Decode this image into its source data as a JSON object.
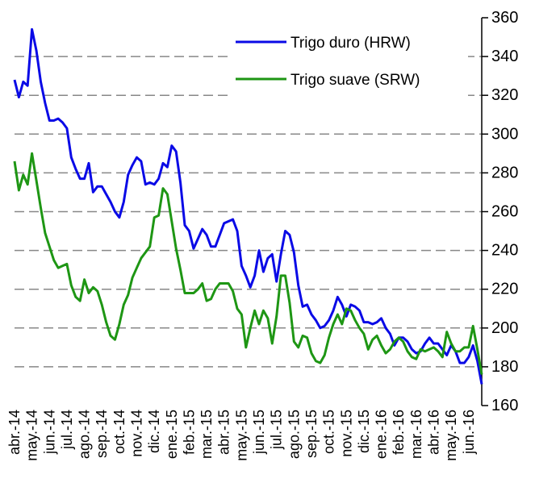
{
  "chart_data": {
    "type": "line",
    "categories": [
      "abr.-14",
      null,
      null,
      null,
      "may.-14",
      null,
      null,
      null,
      "jun.-14",
      null,
      null,
      null,
      "jul.-14",
      null,
      null,
      null,
      "ago.-14",
      null,
      null,
      null,
      "sep.-14",
      null,
      null,
      null,
      "oct.-14",
      null,
      null,
      null,
      "nov.-14",
      null,
      null,
      null,
      "dic.-14",
      null,
      null,
      null,
      "ene.-15",
      null,
      null,
      null,
      "feb.-15",
      null,
      null,
      null,
      "mar.-15",
      null,
      null,
      null,
      "abr.-15",
      null,
      null,
      null,
      "may.-15",
      null,
      null,
      null,
      "jun.-15",
      null,
      null,
      null,
      "jul.-15",
      null,
      null,
      null,
      "ago.-15",
      null,
      null,
      null,
      "sep.-15",
      null,
      null,
      null,
      "oct.-15",
      null,
      null,
      null,
      "nov.-15",
      null,
      null,
      null,
      "dic.-15",
      null,
      null,
      null,
      "ene.-16",
      null,
      null,
      null,
      "feb.-16",
      null,
      null,
      null,
      "mar.-16",
      null,
      null,
      null,
      "abr.-16",
      null,
      null,
      null,
      "may.-16",
      null,
      null,
      null,
      "jun.-16",
      null,
      null,
      null
    ],
    "series": [
      {
        "name": "Trigo duro (HRW)",
        "color": "#0a0ae6",
        "values": [
          328,
          319,
          327,
          325,
          354,
          343,
          327,
          316,
          307,
          307,
          308,
          306,
          303,
          288,
          282,
          277,
          277,
          285,
          270,
          273,
          273,
          269,
          265,
          260,
          257,
          265,
          279,
          284,
          288,
          286,
          274,
          275,
          274,
          277,
          285,
          283,
          294,
          291,
          275,
          253,
          250,
          241,
          246,
          251,
          248,
          242,
          242,
          248,
          254,
          255,
          256,
          250,
          232,
          227,
          221,
          227,
          240,
          229,
          236,
          238,
          224,
          238,
          250,
          248,
          239,
          222,
          211,
          212,
          207,
          204,
          200,
          201,
          204,
          209,
          216,
          212,
          206,
          212,
          211,
          209,
          203,
          203,
          202,
          203,
          205,
          200,
          197,
          191,
          195,
          195,
          193,
          189,
          187,
          188,
          192,
          195,
          192,
          192,
          189,
          186,
          191,
          188,
          182,
          182,
          185,
          191,
          183,
          171
        ]
      },
      {
        "name": "Trigo suave (SRW)",
        "color": "#1e9614",
        "values": [
          286,
          271,
          279,
          274,
          290,
          276,
          262,
          249,
          242,
          235,
          231,
          232,
          233,
          222,
          216,
          214,
          225,
          218,
          221,
          219,
          212,
          203,
          196,
          194,
          202,
          212,
          217,
          226,
          231,
          236,
          239,
          242,
          257,
          258,
          272,
          269,
          255,
          241,
          230,
          218,
          218,
          218,
          220,
          223,
          214,
          215,
          220,
          223,
          223,
          223,
          219,
          210,
          207,
          190,
          200,
          209,
          202,
          209,
          205,
          192,
          206,
          227,
          227,
          213,
          193,
          190,
          196,
          195,
          187,
          183,
          182,
          186,
          195,
          202,
          207,
          202,
          210,
          209,
          204,
          200,
          197,
          189,
          194,
          196,
          191,
          187,
          189,
          193,
          195,
          193,
          188,
          185,
          184,
          189,
          188,
          189,
          190,
          188,
          185,
          198,
          192,
          188,
          188,
          190,
          190,
          201,
          189,
          176
        ]
      }
    ],
    "ylim": [
      160,
      360
    ],
    "yticks": [
      160,
      180,
      200,
      220,
      240,
      260,
      280,
      300,
      320,
      340,
      360
    ],
    "grid": true,
    "y_axis_side": "right",
    "legend": "top"
  }
}
